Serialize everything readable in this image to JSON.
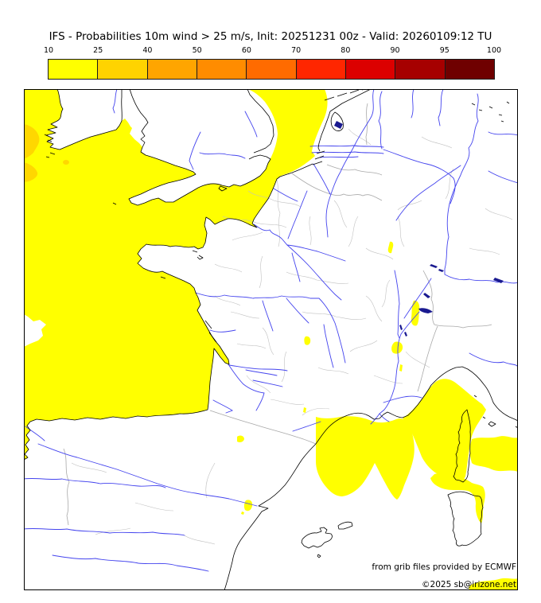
{
  "title": "IFS - Probabilities 10m wind > 25 m/s, Init: 20251231 00z - Valid: 20260109:12 TU",
  "colorbar": {
    "ticks": [
      "10",
      "25",
      "40",
      "50",
      "60",
      "70",
      "80",
      "90",
      "95",
      "100"
    ],
    "colors": [
      "#ffff00",
      "#ffd300",
      "#ffa500",
      "#ff8c00",
      "#ff6b00",
      "#ff2600",
      "#dc0000",
      "#a60000",
      "#6f0000"
    ]
  },
  "map": {
    "colors": {
      "prob10": "#ffff00",
      "prob25": "#ffd700",
      "sea": "#ffffff",
      "coast": "#000000",
      "rivers": "#4444ee",
      "borders": "#c0c0c0",
      "countryBorders": "#a8a8a8",
      "lakes": "#1a1a90",
      "frame": "#000000"
    }
  },
  "attribution": {
    "line1": "from grib files provided by ECMWF",
    "line2": "©2025 sb@irizone.net"
  }
}
